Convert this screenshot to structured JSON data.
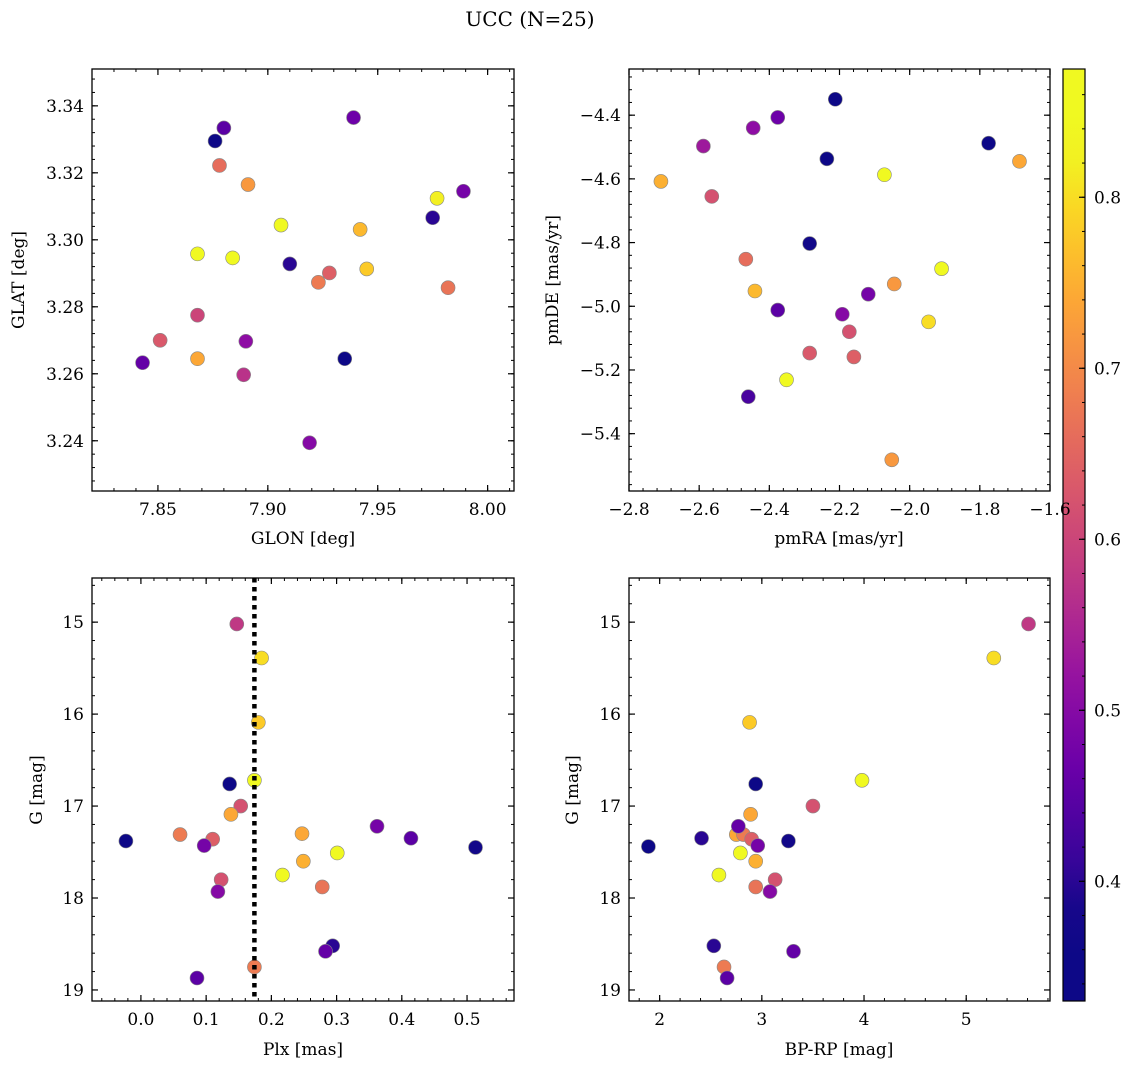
{
  "figure": {
    "title": "UCC (N=25)"
  },
  "colorbar": {
    "range": [
      0.33,
      0.875
    ],
    "ticks": [
      0.4,
      0.5,
      0.6,
      0.7,
      0.8
    ],
    "tick_labels": [
      "0.4",
      "0.5",
      "0.6",
      "0.7",
      "0.8"
    ],
    "colormap": "plasma"
  },
  "chart_data": [
    {
      "type": "scatter",
      "xlabel": "GLON [deg]",
      "ylabel": "GLAT [deg]",
      "xlim": [
        7.82,
        8.012
      ],
      "ylim": [
        3.225,
        3.351
      ],
      "xticks": [
        7.85,
        7.9,
        7.95,
        8.0
      ],
      "xtick_labels": [
        "7.85",
        "7.90",
        "7.95",
        "8.00"
      ],
      "yticks": [
        3.24,
        3.26,
        3.28,
        3.3,
        3.32,
        3.34
      ],
      "ytick_labels": [
        "3.24",
        "3.26",
        "3.28",
        "3.30",
        "3.32",
        "3.34"
      ],
      "y_inverted": false,
      "points": [
        [
          7.876,
          3.3295,
          0.34
        ],
        [
          7.88,
          3.3334,
          0.45
        ],
        [
          7.939,
          3.3365,
          0.47
        ],
        [
          7.878,
          3.3222,
          0.66
        ],
        [
          7.891,
          3.3165,
          0.72
        ],
        [
          7.977,
          3.3124,
          0.82
        ],
        [
          7.989,
          3.3145,
          0.48
        ],
        [
          7.906,
          3.3044,
          0.84
        ],
        [
          7.975,
          3.3066,
          0.4
        ],
        [
          7.868,
          3.2958,
          0.87
        ],
        [
          7.884,
          3.2946,
          0.86
        ],
        [
          7.942,
          3.3031,
          0.76
        ],
        [
          7.91,
          3.2928,
          0.4
        ],
        [
          7.945,
          3.2913,
          0.78
        ],
        [
          7.928,
          3.2901,
          0.64
        ],
        [
          7.923,
          3.2873,
          0.68
        ],
        [
          7.982,
          3.2857,
          0.67
        ],
        [
          7.868,
          3.2775,
          0.6
        ],
        [
          7.851,
          3.27,
          0.63
        ],
        [
          7.89,
          3.2697,
          0.51
        ],
        [
          7.868,
          3.2645,
          0.74
        ],
        [
          7.935,
          3.2645,
          0.36
        ],
        [
          7.843,
          3.2633,
          0.46
        ],
        [
          7.889,
          3.2597,
          0.57
        ],
        [
          7.919,
          3.2394,
          0.5
        ]
      ]
    },
    {
      "type": "scatter",
      "xlabel": "pmRA [mas/yr]",
      "ylabel": "pmDE [mas/yr]",
      "xlim": [
        -2.8,
        -1.6
      ],
      "ylim": [
        -5.58,
        -4.255
      ],
      "xticks": [
        -2.8,
        -2.6,
        -2.4,
        -2.2,
        -2.0,
        -1.8,
        -1.6
      ],
      "xtick_labels": [
        "−2.8",
        "−2.6",
        "−2.4",
        "−2.2",
        "−2.0",
        "−1.8",
        "−1.6"
      ],
      "yticks": [
        -5.4,
        -5.2,
        -5.0,
        -4.8,
        -4.6,
        -4.4
      ],
      "ytick_labels": [
        "−5.4",
        "−5.2",
        "−5.0",
        "−4.8",
        "−4.6",
        "−4.4"
      ],
      "y_inverted": false,
      "points": [
        [
          -2.212,
          -4.35,
          0.34
        ],
        [
          -2.376,
          -4.407,
          0.47
        ],
        [
          -2.446,
          -4.44,
          0.51
        ],
        [
          -2.588,
          -4.497,
          0.53
        ],
        [
          -1.775,
          -4.488,
          0.35
        ],
        [
          -2.236,
          -4.537,
          0.36
        ],
        [
          -1.687,
          -4.545,
          0.74
        ],
        [
          -2.072,
          -4.587,
          0.86
        ],
        [
          -2.709,
          -4.608,
          0.75
        ],
        [
          -2.564,
          -4.655,
          0.62
        ],
        [
          -2.285,
          -4.803,
          0.38
        ],
        [
          -2.467,
          -4.852,
          0.66
        ],
        [
          -1.909,
          -4.882,
          0.87
        ],
        [
          -2.044,
          -4.93,
          0.72
        ],
        [
          -2.441,
          -4.952,
          0.76
        ],
        [
          -2.118,
          -4.962,
          0.48
        ],
        [
          -2.376,
          -5.012,
          0.45
        ],
        [
          -2.192,
          -5.025,
          0.5
        ],
        [
          -1.946,
          -5.049,
          0.8
        ],
        [
          -2.172,
          -5.08,
          0.62
        ],
        [
          -2.285,
          -5.147,
          0.63
        ],
        [
          -2.159,
          -5.159,
          0.64
        ],
        [
          -2.351,
          -5.231,
          0.86
        ],
        [
          -2.46,
          -5.284,
          0.43
        ],
        [
          -2.051,
          -5.482,
          0.72
        ]
      ]
    },
    {
      "type": "scatter",
      "xlabel": "Plx [mas]",
      "ylabel": "G [mag]",
      "xlim": [
        -0.075,
        0.572
      ],
      "ylim": [
        19.12,
        14.52
      ],
      "xticks": [
        0.0,
        0.1,
        0.2,
        0.3,
        0.4,
        0.5
      ],
      "xtick_labels": [
        "0.0",
        "0.1",
        "0.2",
        "0.3",
        "0.4",
        "0.5"
      ],
      "yticks": [
        15,
        16,
        17,
        18,
        19
      ],
      "ytick_labels": [
        "15",
        "16",
        "17",
        "18",
        "19"
      ],
      "y_inverted": true,
      "vline": {
        "x": 0.174,
        "style": "dotted"
      },
      "points": [
        [
          0.147,
          15.02,
          0.58
        ],
        [
          0.185,
          15.39,
          0.8
        ],
        [
          0.18,
          16.09,
          0.78
        ],
        [
          0.136,
          16.76,
          0.36
        ],
        [
          0.174,
          16.72,
          0.87
        ],
        [
          0.153,
          17.0,
          0.62
        ],
        [
          0.138,
          17.09,
          0.74
        ],
        [
          -0.023,
          17.38,
          0.36
        ],
        [
          0.06,
          17.31,
          0.68
        ],
        [
          0.11,
          17.36,
          0.64
        ],
        [
          0.097,
          17.43,
          0.48
        ],
        [
          0.247,
          17.3,
          0.74
        ],
        [
          0.362,
          17.22,
          0.48
        ],
        [
          0.414,
          17.35,
          0.45
        ],
        [
          0.513,
          17.45,
          0.38
        ],
        [
          0.301,
          17.51,
          0.87
        ],
        [
          0.249,
          17.6,
          0.75
        ],
        [
          0.217,
          17.75,
          0.87
        ],
        [
          0.123,
          17.8,
          0.62
        ],
        [
          0.118,
          17.93,
          0.5
        ],
        [
          0.278,
          17.88,
          0.67
        ],
        [
          0.294,
          18.52,
          0.4
        ],
        [
          0.283,
          18.58,
          0.46
        ],
        [
          0.174,
          18.75,
          0.68
        ],
        [
          0.086,
          18.87,
          0.45
        ]
      ]
    },
    {
      "type": "scatter",
      "xlabel": "BP-RP [mag]",
      "ylabel": "G [mag]",
      "xlim": [
        1.7,
        5.82
      ],
      "ylim": [
        19.12,
        14.52
      ],
      "xticks": [
        2,
        3,
        4,
        5
      ],
      "xtick_labels": [
        "2",
        "3",
        "4",
        "5"
      ],
      "yticks": [
        15,
        16,
        17,
        18,
        19
      ],
      "ytick_labels": [
        "15",
        "16",
        "17",
        "18",
        "19"
      ],
      "y_inverted": true,
      "points": [
        [
          5.61,
          15.02,
          0.58
        ],
        [
          5.27,
          15.39,
          0.8
        ],
        [
          2.88,
          16.09,
          0.78
        ],
        [
          2.94,
          16.76,
          0.36
        ],
        [
          3.98,
          16.72,
          0.87
        ],
        [
          3.5,
          17.0,
          0.62
        ],
        [
          2.89,
          17.09,
          0.74
        ],
        [
          2.41,
          17.35,
          0.4
        ],
        [
          2.75,
          17.31,
          0.74
        ],
        [
          2.82,
          17.31,
          0.68
        ],
        [
          2.9,
          17.36,
          0.64
        ],
        [
          2.77,
          17.22,
          0.46
        ],
        [
          2.96,
          17.43,
          0.48
        ],
        [
          3.26,
          17.38,
          0.38
        ],
        [
          1.89,
          17.44,
          0.36
        ],
        [
          2.79,
          17.51,
          0.87
        ],
        [
          2.94,
          17.6,
          0.75
        ],
        [
          2.58,
          17.75,
          0.87
        ],
        [
          3.13,
          17.8,
          0.62
        ],
        [
          2.94,
          17.88,
          0.67
        ],
        [
          3.08,
          17.93,
          0.5
        ],
        [
          2.53,
          18.52,
          0.4
        ],
        [
          3.31,
          18.58,
          0.46
        ],
        [
          2.63,
          18.75,
          0.68
        ],
        [
          2.66,
          18.87,
          0.45
        ]
      ]
    }
  ]
}
